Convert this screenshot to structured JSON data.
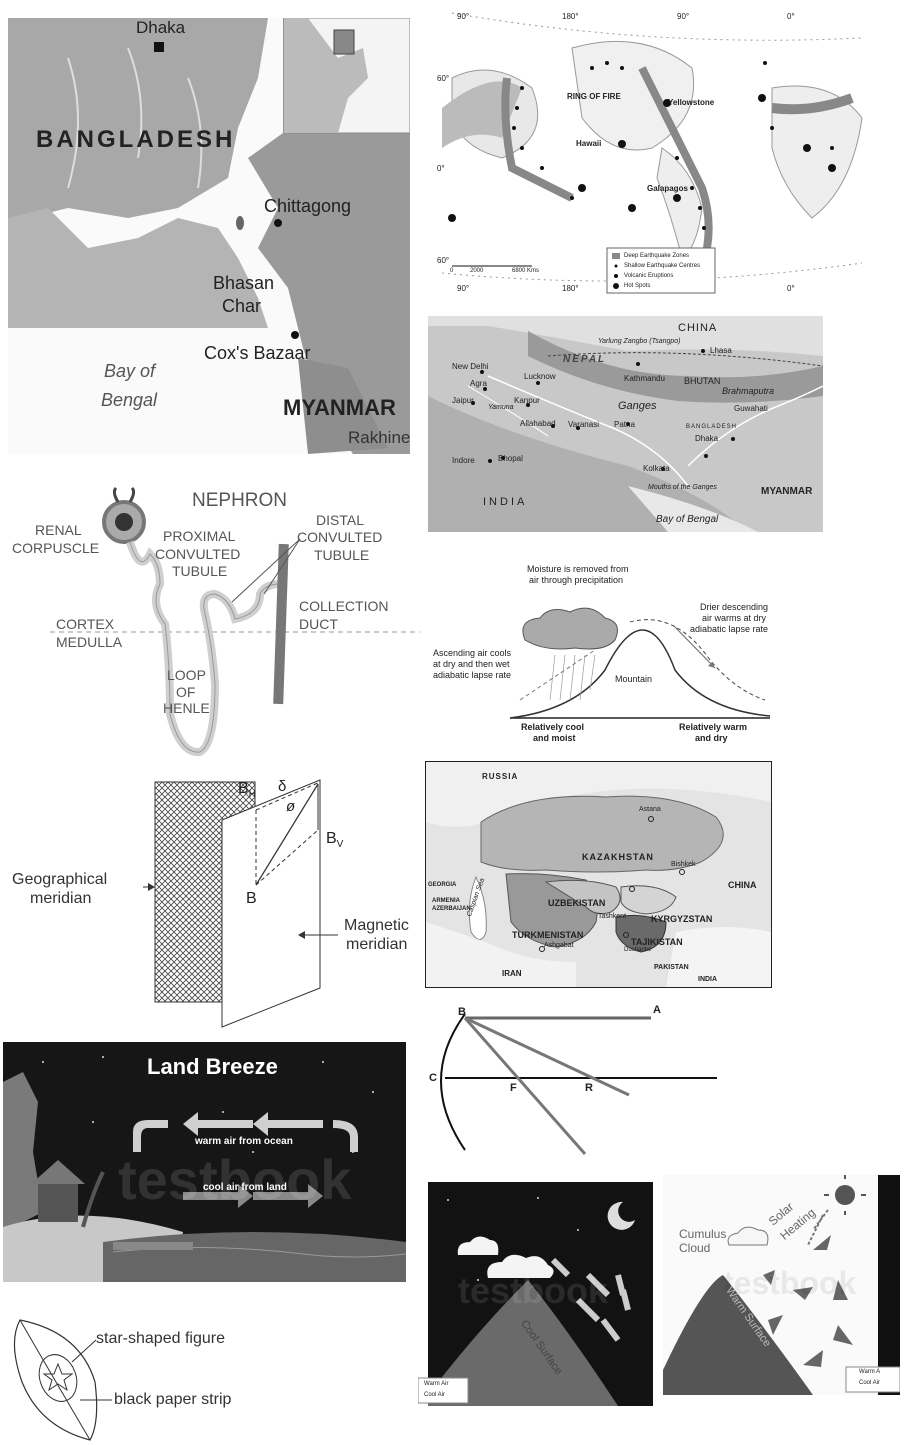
{
  "bangladesh_map": {
    "dhaka": "Dhaka",
    "country": "BANGLADESH",
    "chittagong": "Chittagong",
    "bhasan_char_1": "Bhasan",
    "bhasan_char_2": "Char",
    "coxs_bazaar": "Cox's Bazaar",
    "bay_1": "Bay of",
    "bay_2": "Bengal",
    "myanmar": "MYANMAR",
    "rakhine": "Rakhine"
  },
  "ring_of_fire_map": {
    "lon_90w_top": "90°",
    "lon_180_top": "180°",
    "lon_90_top": "90°",
    "lon_0_top": "0°",
    "lat_60": "60°",
    "lat_0": "0°",
    "lat_60s": "60°",
    "ring_label": "RING OF FIRE",
    "yellowstone": "Yellowstone",
    "hawaii": "Hawaii",
    "galapagos": "Galapagos",
    "scale_0": "0",
    "scale_2000": "2000",
    "scale_6800": "6800 Kms",
    "lon_90_bottom": "90°",
    "lon_180_bottom": "180°",
    "lon_0_bottom": "0°",
    "legend": [
      "Deep Earthquake Zones",
      "Shallow Earthquake Centres",
      "Volcanic Eruptions",
      "Hot Spots"
    ]
  },
  "ganges_map": {
    "china": "CHINA",
    "nepal": "NEPAL",
    "yarlung": "Yarlung Zangbo (Tsangpo)",
    "lhasa": "Lhasa",
    "new_delhi": "New Delhi",
    "agra": "Agra",
    "jaipur": "Jaipur",
    "lucknow": "Lucknow",
    "kanpur": "Kanpur",
    "allahabad": "Allahabad",
    "varanasi": "Varanasi",
    "patna": "Patna",
    "kathmandu": "Kathmandu",
    "bhutan": "BHUTAN",
    "brahmaputra": "Brahmaputra",
    "guwahati": "Guwahati",
    "ganges": "Ganges",
    "yamuna": "Yamuna",
    "indore": "Indore",
    "bhopal": "Bhopal",
    "india": "INDIA",
    "kolkata": "Kolkata",
    "dhaka": "Dhaka",
    "bangladesh": "BANGLADESH",
    "myanmar": "MYANMAR",
    "bay": "Bay of Bengal",
    "mouths": "Mouths of the Ganges"
  },
  "nephron": {
    "title": "NEPHRON",
    "renal_1": "RENAL",
    "renal_2": "CORPUSCLE",
    "pct_1": "PROXIMAL",
    "pct_2": "CONVULTED",
    "pct_3": "TUBULE",
    "dct_1": "DISTAL",
    "dct_2": "CONVULTED",
    "dct_3": "TUBULE",
    "cortex": "CORTEX",
    "medulla": "MEDULLA",
    "coll_1": "COLLECTION",
    "coll_2": "DUCT",
    "loop_1": "LOOP",
    "loop_2": "OF",
    "loop_3": "HENLE"
  },
  "orographic": {
    "top_1": "Moisture is removed from",
    "top_2": "air through precipitation",
    "left_1": "Ascending air cools",
    "left_2": "at dry and then wet",
    "left_3": "adiabatic lapse rate",
    "right_1": "Drier descending",
    "right_2": "air warms at dry",
    "right_3": "adiabatic lapse rate",
    "mountain": "Mountain",
    "bl_1": "Relatively cool",
    "bl_2": "and moist",
    "br_1": "Relatively warm",
    "br_2": "and dry"
  },
  "meridian": {
    "bh": "B",
    "bh_sub": "H",
    "angle_value": "δ",
    "phi": "ø",
    "bv": "B",
    "bv_sub": "V",
    "b": "B",
    "geo_1": "Geographical",
    "geo_2": "meridian",
    "mag_1": "Magnetic",
    "mag_2": "meridian"
  },
  "central_asia_map": {
    "russia": "RUSSIA",
    "astana": "Astana",
    "kazakhstan": "KAZAKHSTAN",
    "china": "CHINA",
    "georgia": "GEORGIA",
    "armenia": "ARMENIA",
    "azerbaijan": "AZERBAIJAN",
    "caspian": "Caspian Sea",
    "uzbekistan": "UZBEKISTAN",
    "bishkek": "Bishkek",
    "kyrgyzstan": "KYRGYZSTAN",
    "tashkent": "Tashkent",
    "turkmenistan": "TURKMENISTAN",
    "ashgabat": "Ashgabat",
    "tajikistan": "TAJIKISTAN",
    "dushanbe": "Dushanbe",
    "iran": "IRAN",
    "pakistan": "PAKISTAN",
    "india": "INDIA"
  },
  "mirror": {
    "b": "B",
    "a": "A",
    "c": "C",
    "f": "F",
    "r": "R"
  },
  "land_breeze": {
    "title": "Land Breeze",
    "warm": "warm air from ocean",
    "cool": "cool air from land",
    "watermark": "testbook"
  },
  "leaf": {
    "star": "star-shaped figure",
    "strip": "black paper strip"
  },
  "night_slope": {
    "surface": "Cool Surface",
    "legend": [
      "Warm Air",
      "Cool Air"
    ],
    "watermark": "testbook"
  },
  "day_slope": {
    "cloud_1": "Cumulus",
    "cloud_2": "Cloud",
    "solar_1": "Solar",
    "solar_2": "Heating",
    "surface": "Warm Surface",
    "legend": [
      "Warm A",
      "Cool Air"
    ],
    "watermark": "testbook"
  }
}
